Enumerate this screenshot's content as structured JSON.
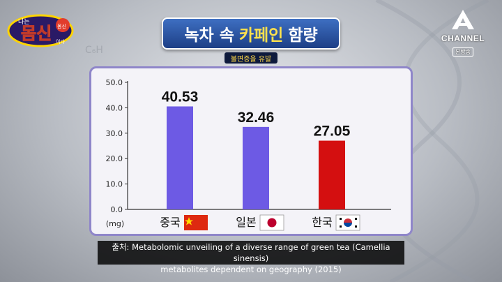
{
  "title": {
    "part1": "녹차 속",
    "highlight": "카페인",
    "part2": "함량"
  },
  "subtitle": "불면증을 유발",
  "program_logo": {
    "top_text": "나는",
    "main_text": "몸신",
    "side_text": "이다",
    "badge_text": "몸신"
  },
  "channel_logo": {
    "name": "CHANNEL",
    "sub": "본방송",
    "color": "#ffffff"
  },
  "background_formula": "C₆H",
  "caption": {
    "line1": "출처: Metabolomic unveiling of a diverse range of green tea (Camellia sinensis)",
    "line2": "metabolites dependent on geography (2015)"
  },
  "chart_data": {
    "type": "bar",
    "categories": [
      "중국",
      "일본",
      "한국"
    ],
    "values": [
      40.53,
      32.46,
      27.05
    ],
    "value_labels": [
      "40.53",
      "32.46",
      "27.05"
    ],
    "bar_colors": [
      "#6d5ae4",
      "#6d5ae4",
      "#d40f10"
    ],
    "flags": [
      "china-flag",
      "japan-flag",
      "korea-flag"
    ],
    "ylim": [
      0,
      50
    ],
    "yticks": [
      "0.0",
      "10.0",
      "20.0",
      "30.0",
      "40.0",
      "50.0"
    ],
    "ytick_values": [
      0,
      10,
      20,
      30,
      40,
      50
    ],
    "unit": "(mg)",
    "grid": false
  }
}
